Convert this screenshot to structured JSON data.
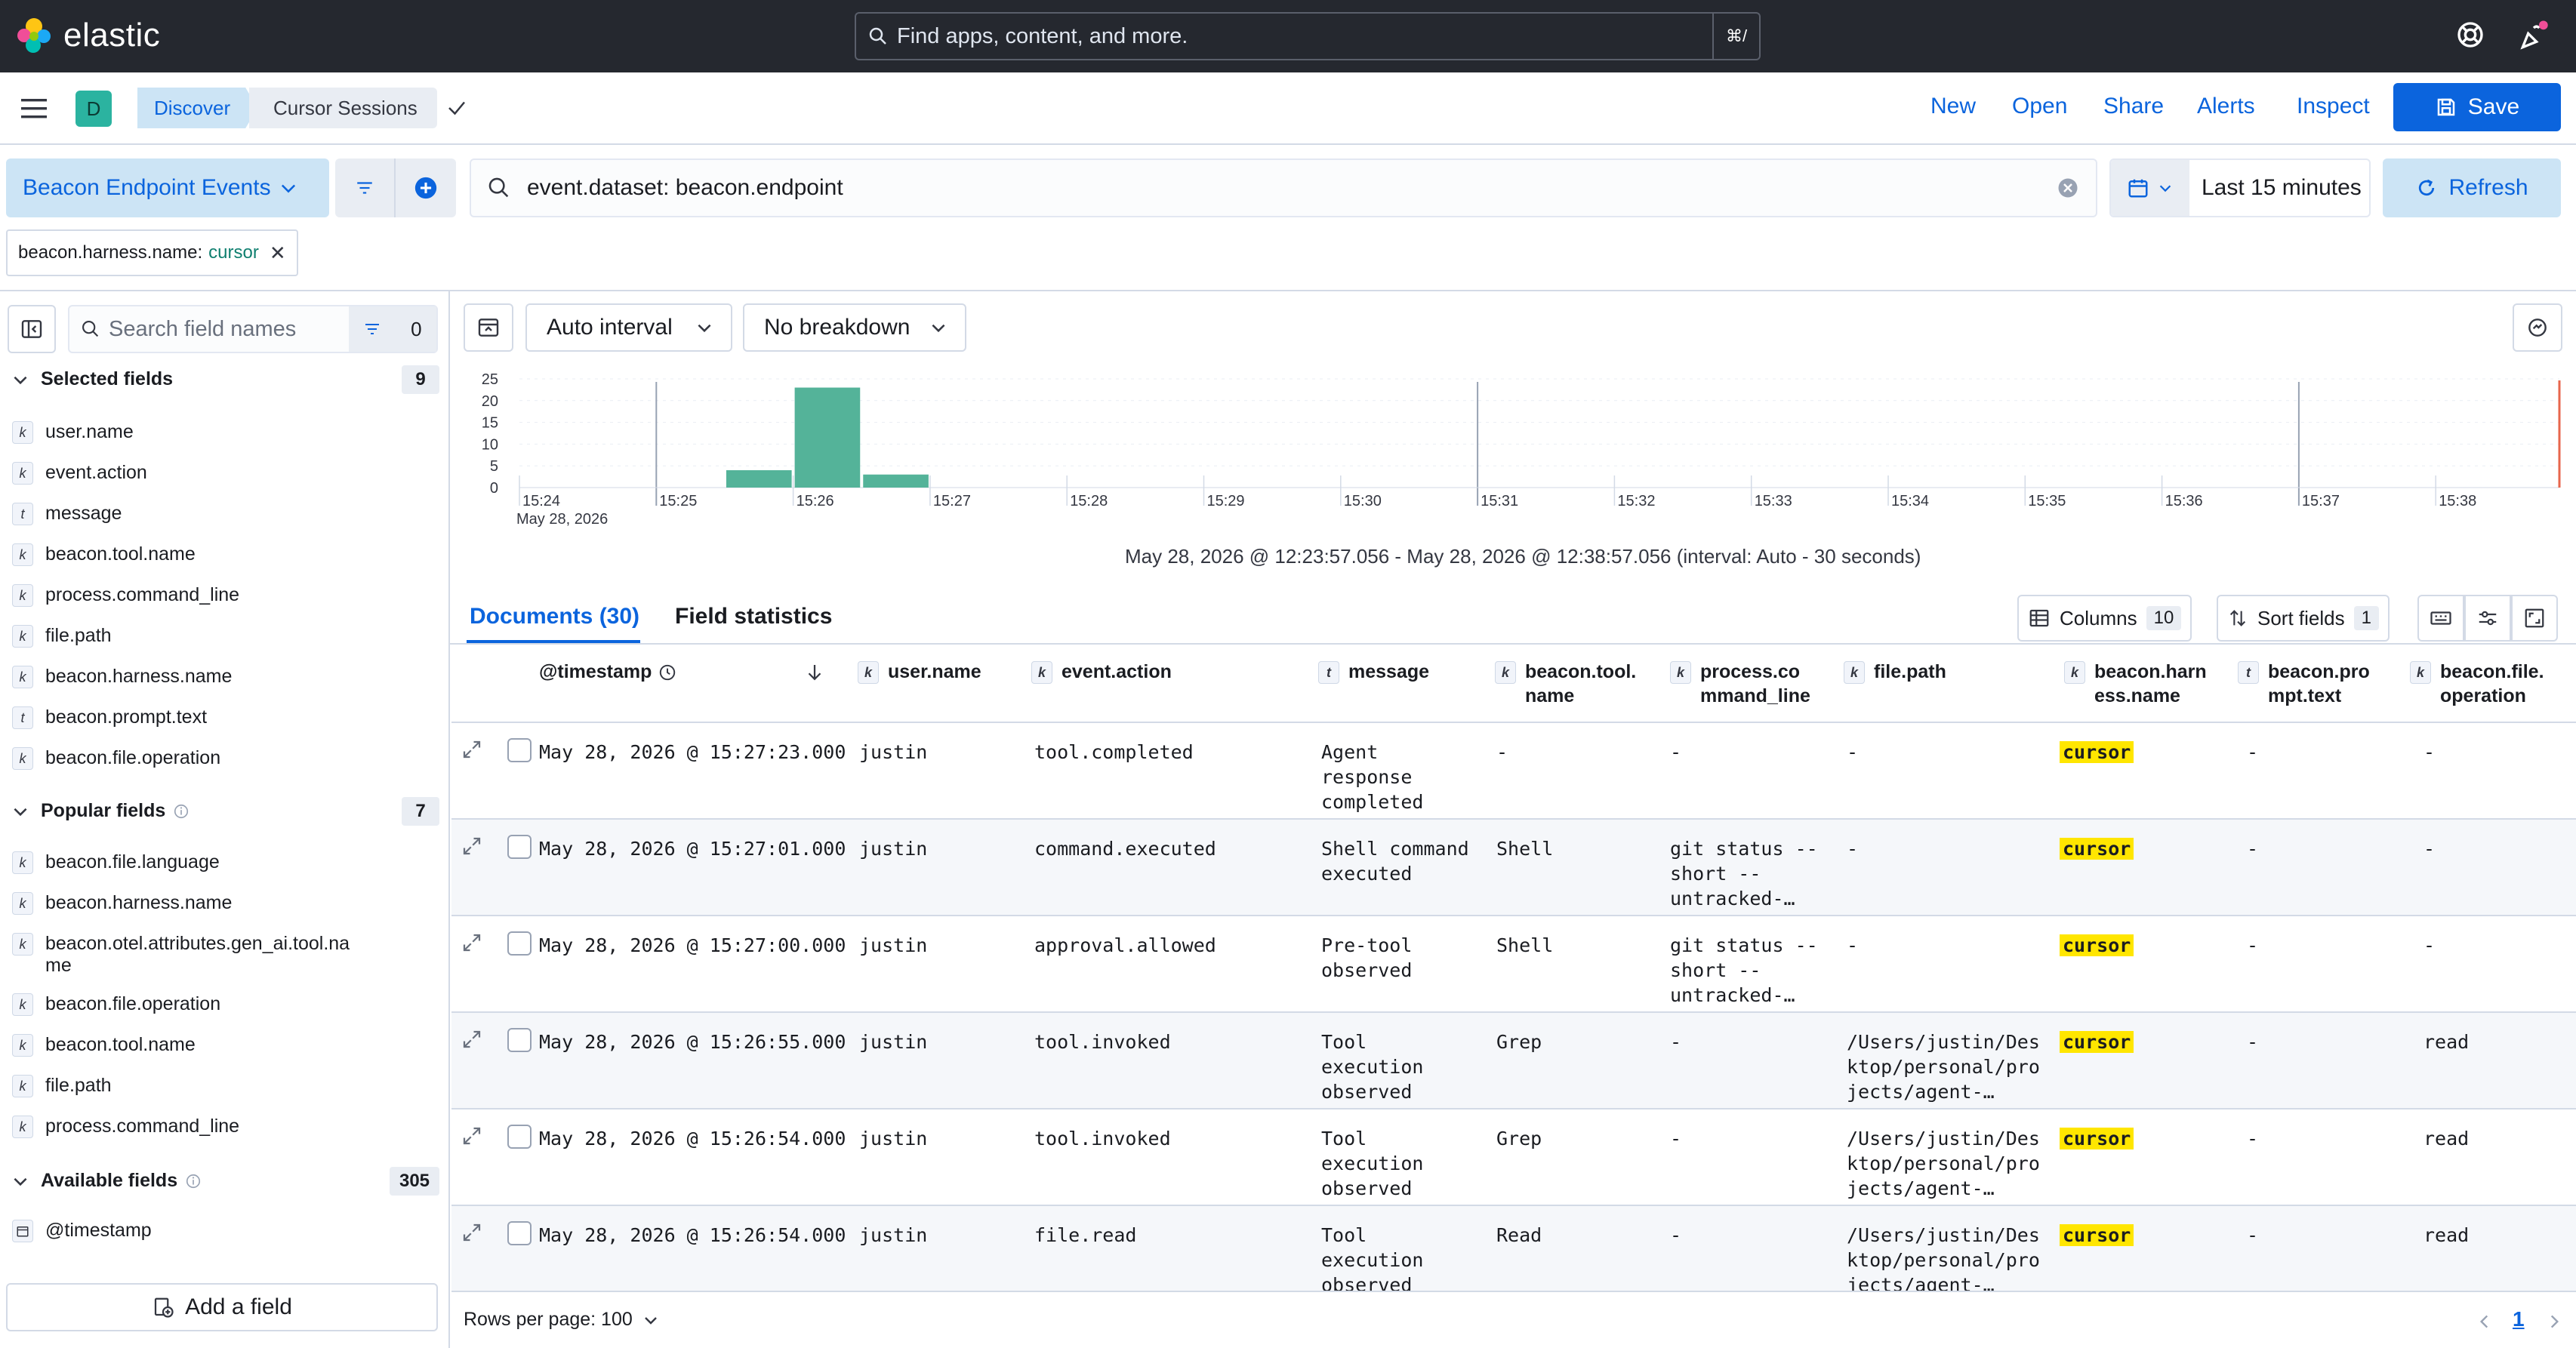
{
  "header": {
    "brand": "elastic",
    "search_placeholder": "Find apps, content, and more.",
    "search_shortcut": "⌘/"
  },
  "nav": {
    "avatar_letter": "D",
    "breadcrumbs": [
      "Discover",
      "Cursor Sessions"
    ],
    "links": [
      "New",
      "Open",
      "Share",
      "Alerts",
      "Inspect"
    ],
    "save_label": "Save"
  },
  "query": {
    "data_view": "Beacon Endpoint Events",
    "text": "event.dataset: beacon.endpoint",
    "time_range": "Last 15 minutes",
    "refresh_label": "Refresh",
    "filter_pill_key": "beacon.harness.name:",
    "filter_pill_value": "cursor"
  },
  "sidebar": {
    "search_placeholder": "Search field names",
    "filter_count": "0",
    "selected": {
      "title": "Selected fields",
      "count": "9",
      "items": [
        {
          "type": "k",
          "name": "user.name"
        },
        {
          "type": "k",
          "name": "event.action"
        },
        {
          "type": "t",
          "name": "message"
        },
        {
          "type": "k",
          "name": "beacon.tool.name"
        },
        {
          "type": "k",
          "name": "process.command_line"
        },
        {
          "type": "k",
          "name": "file.path"
        },
        {
          "type": "k",
          "name": "beacon.harness.name"
        },
        {
          "type": "t",
          "name": "beacon.prompt.text"
        },
        {
          "type": "k",
          "name": "beacon.file.operation"
        }
      ]
    },
    "popular": {
      "title": "Popular fields",
      "count": "7",
      "items": [
        {
          "type": "k",
          "name": "beacon.file.language"
        },
        {
          "type": "k",
          "name": "beacon.harness.name"
        },
        {
          "type": "k",
          "name": "beacon.otel.attributes.gen_ai.tool.na",
          "name2": "me"
        },
        {
          "type": "k",
          "name": "beacon.file.operation"
        },
        {
          "type": "k",
          "name": "beacon.tool.name"
        },
        {
          "type": "k",
          "name": "file.path"
        },
        {
          "type": "k",
          "name": "process.command_line"
        }
      ]
    },
    "available": {
      "title": "Available fields",
      "count": "305",
      "items": [
        {
          "type": "date",
          "name": "@timestamp"
        }
      ]
    },
    "add_field_label": "Add a field"
  },
  "chart_toolbar": {
    "interval": "Auto interval",
    "breakdown": "No breakdown"
  },
  "chart_data": {
    "type": "bar",
    "x_ticks": [
      "15:24",
      "15:25",
      "15:26",
      "15:27",
      "15:28",
      "15:29",
      "15:30",
      "15:31",
      "15:32",
      "15:33",
      "15:34",
      "15:35",
      "15:36",
      "15:37",
      "15:38"
    ],
    "x_sub_label": "May 28, 2026",
    "y_ticks": [
      "25",
      "20",
      "15",
      "10",
      "5",
      "0"
    ],
    "ylim": [
      0,
      25
    ],
    "bars": [
      {
        "start": "15:25:30",
        "value": 4
      },
      {
        "start": "15:26:00",
        "value": 23
      },
      {
        "start": "15:26:30",
        "value": 3
      }
    ],
    "bar_color": "#54b399",
    "range_text": "May 28, 2026 @ 12:23:57.056 - May 28, 2026 @ 12:38:57.056 (interval: Auto - 30 seconds)"
  },
  "tabs": {
    "documents": "Documents (30)",
    "field_stats": "Field statistics"
  },
  "table_controls": {
    "columns_label": "Columns",
    "columns_count": "10",
    "sort_label": "Sort fields",
    "sort_count": "1"
  },
  "table": {
    "headers": [
      {
        "type": "",
        "line1": "@timestamp",
        "line2": ""
      },
      {
        "type": "k",
        "line1": "user.name",
        "line2": ""
      },
      {
        "type": "k",
        "line1": "event.action",
        "line2": ""
      },
      {
        "type": "t",
        "line1": "message",
        "line2": ""
      },
      {
        "type": "k",
        "line1": "beacon.tool.",
        "line2": "name"
      },
      {
        "type": "k",
        "line1": "process.co",
        "line2": "mmand_line"
      },
      {
        "type": "k",
        "line1": "file.path",
        "line2": ""
      },
      {
        "type": "k",
        "line1": "beacon.harn",
        "line2": "ess.name"
      },
      {
        "type": "t",
        "line1": "beacon.pro",
        "line2": "mpt.text"
      },
      {
        "type": "k",
        "line1": "beacon.file.",
        "line2": "operation"
      }
    ],
    "rows": [
      {
        "ts": "May 28, 2026 @ 15:27:23.000",
        "user": "justin",
        "action": "tool.completed",
        "msg": [
          "Agent",
          "response",
          "completed"
        ],
        "tool": "-",
        "cmd": [
          "-"
        ],
        "path": [
          "-"
        ],
        "harness": "cursor",
        "prompt": "-",
        "op": "-"
      },
      {
        "ts": "May 28, 2026 @ 15:27:01.000",
        "user": "justin",
        "action": "command.executed",
        "msg": [
          "Shell command",
          "executed"
        ],
        "tool": "Shell",
        "cmd": [
          "git status --",
          "short --",
          "untracked-…"
        ],
        "path": [
          "-"
        ],
        "harness": "cursor",
        "prompt": "-",
        "op": "-"
      },
      {
        "ts": "May 28, 2026 @ 15:27:00.000",
        "user": "justin",
        "action": "approval.allowed",
        "msg": [
          "Pre-tool",
          "observed"
        ],
        "tool": "Shell",
        "cmd": [
          "git status --",
          "short --",
          "untracked-…"
        ],
        "path": [
          "-"
        ],
        "harness": "cursor",
        "prompt": "-",
        "op": "-"
      },
      {
        "ts": "May 28, 2026 @ 15:26:55.000",
        "user": "justin",
        "action": "tool.invoked",
        "msg": [
          "Tool",
          "execution",
          "observed"
        ],
        "tool": "Grep",
        "cmd": [
          "-"
        ],
        "path": [
          "/Users/justin/Des",
          "ktop/personal/pro",
          "jects/agent-…"
        ],
        "harness": "cursor",
        "prompt": "-",
        "op": "read"
      },
      {
        "ts": "May 28, 2026 @ 15:26:54.000",
        "user": "justin",
        "action": "tool.invoked",
        "msg": [
          "Tool",
          "execution",
          "observed"
        ],
        "tool": "Grep",
        "cmd": [
          "-"
        ],
        "path": [
          "/Users/justin/Des",
          "ktop/personal/pro",
          "jects/agent-…"
        ],
        "harness": "cursor",
        "prompt": "-",
        "op": "read"
      },
      {
        "ts": "May 28, 2026 @ 15:26:54.000",
        "user": "justin",
        "action": "file.read",
        "msg": [
          "Tool",
          "execution",
          "observed"
        ],
        "tool": "Read",
        "cmd": [
          "-"
        ],
        "path": [
          "/Users/justin/Des",
          "ktop/personal/pro",
          "jects/agent-…"
        ],
        "harness": "cursor",
        "prompt": "-",
        "op": "read"
      }
    ]
  },
  "footer": {
    "rows_per_page": "Rows per page: 100",
    "page": "1"
  }
}
